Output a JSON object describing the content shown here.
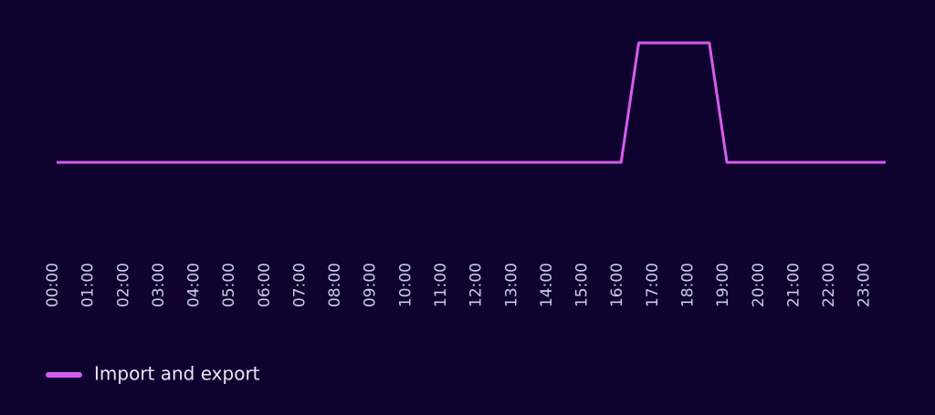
{
  "chart_data": {
    "type": "line",
    "categories": [
      "00:00",
      null,
      "01:00",
      null,
      "02:00",
      null,
      "03:00",
      null,
      "04:00",
      null,
      "05:00",
      null,
      "06:00",
      null,
      "07:00",
      null,
      "08:00",
      null,
      "09:00",
      null,
      "10:00",
      null,
      "11:00",
      null,
      "12:00",
      null,
      "13:00",
      null,
      "14:00",
      null,
      "15:00",
      null,
      "16:00",
      null,
      "17:00",
      null,
      "18:00",
      null,
      "19:00",
      null,
      "20:00",
      null,
      "21:00",
      null,
      "22:00",
      null,
      "23:00",
      null
    ],
    "series": [
      {
        "name": "Import and export",
        "color": "#d65cf0",
        "values": [
          0,
          0,
          0,
          0,
          0,
          0,
          0,
          0,
          0,
          0,
          0,
          0,
          0,
          0,
          0,
          0,
          0,
          0,
          0,
          0,
          0,
          0,
          0,
          0,
          0,
          0,
          0,
          0,
          0,
          0,
          0,
          0,
          0,
          1,
          1,
          1,
          1,
          1,
          0,
          0,
          0,
          0,
          0,
          0,
          0,
          0,
          0,
          0
        ]
      }
    ],
    "ylim": [
      0,
      1
    ]
  }
}
